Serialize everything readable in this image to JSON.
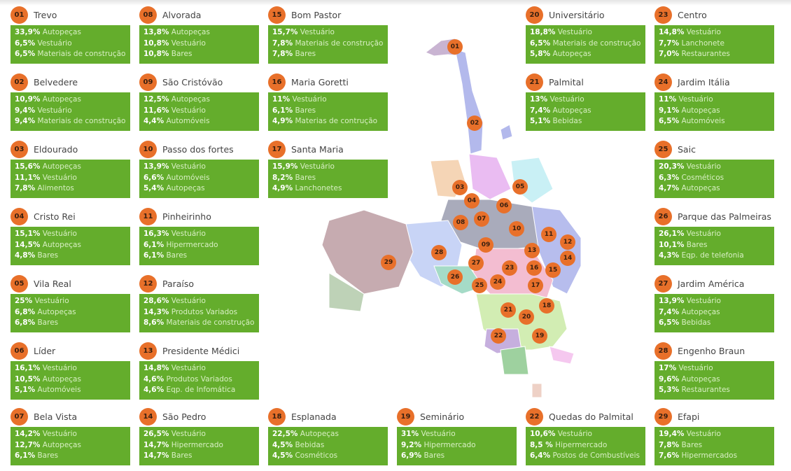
{
  "districts": [
    {
      "num": "01",
      "name": "Trevo",
      "items": [
        [
          "33,9%",
          "Autopeças"
        ],
        [
          "6,5%",
          "Vestuário"
        ],
        [
          "6,5%",
          "Materiais de construção"
        ]
      ]
    },
    {
      "num": "02",
      "name": "Belvedere",
      "items": [
        [
          "10,9%",
          "Autopeças"
        ],
        [
          "9,4%",
          "Vestuário"
        ],
        [
          "9,4%",
          "Materiais de construção"
        ]
      ]
    },
    {
      "num": "03",
      "name": "Eldourado",
      "items": [
        [
          "15,6%",
          "Autopeças"
        ],
        [
          "11,1%",
          "Vestuário"
        ],
        [
          "7,8%",
          "Alimentos"
        ]
      ]
    },
    {
      "num": "04",
      "name": "Cristo Rei",
      "items": [
        [
          "15,1%",
          "Vestuário"
        ],
        [
          "14,5%",
          "Autopeças"
        ],
        [
          "4,8%",
          "Bares"
        ]
      ]
    },
    {
      "num": "05",
      "name": "Vila Real",
      "items": [
        [
          "25%",
          "Vestuário"
        ],
        [
          "6,8%",
          "Autopeças"
        ],
        [
          "6,8%",
          "Bares"
        ]
      ]
    },
    {
      "num": "06",
      "name": "Líder",
      "items": [
        [
          "16,1%",
          "Vestuário"
        ],
        [
          "10,5%",
          "Autopeças"
        ],
        [
          "5,1%",
          "Automóveis"
        ]
      ]
    },
    {
      "num": "07",
      "name": "Bela Vista",
      "items": [
        [
          "14,2%",
          "Vestuário"
        ],
        [
          "12,7%",
          "Autopeças"
        ],
        [
          "6,1%",
          "Bares"
        ]
      ]
    },
    {
      "num": "08",
      "name": "Alvorada",
      "items": [
        [
          "13,8%",
          "Autopeças"
        ],
        [
          "10,8%",
          "Vestuário"
        ],
        [
          "10,8%",
          "Bares"
        ]
      ]
    },
    {
      "num": "09",
      "name": "São Cristóvão",
      "items": [
        [
          "12,5%",
          "Autopeças"
        ],
        [
          "11,6%",
          "Vestuário"
        ],
        [
          "4,4%",
          "Automóveis"
        ]
      ]
    },
    {
      "num": "10",
      "name": "Passo dos fortes",
      "items": [
        [
          "13,9%",
          "Vestuário"
        ],
        [
          "6,6%",
          "Automóveis"
        ],
        [
          "5,4%",
          "Autopeças"
        ]
      ]
    },
    {
      "num": "11",
      "name": "Pinheirinho",
      "items": [
        [
          "16,3%",
          "Vestuário"
        ],
        [
          "6,1%",
          "Hipermercado"
        ],
        [
          "6,1%",
          "Bares"
        ]
      ]
    },
    {
      "num": "12",
      "name": "Paraíso",
      "items": [
        [
          "28,6%",
          "Vestuário"
        ],
        [
          "14,3%",
          "Produtos Variados"
        ],
        [
          "8,6%",
          "Materiais de construção"
        ]
      ]
    },
    {
      "num": "13",
      "name": "Presidente Médici",
      "items": [
        [
          "14,8%",
          "Vestuário"
        ],
        [
          "4,6%",
          "Produtos Variados"
        ],
        [
          "4,6%",
          "Eqp. de Infomática"
        ]
      ]
    },
    {
      "num": "14",
      "name": "São Pedro",
      "items": [
        [
          "26,5%",
          "Vestuário"
        ],
        [
          "14,7%",
          "Hipermercado"
        ],
        [
          "14,7%",
          "Bares"
        ]
      ]
    },
    {
      "num": "15",
      "name": "Bom Pastor",
      "items": [
        [
          "15,7%",
          "Vestuário"
        ],
        [
          "7,8%",
          "Materiais de construção"
        ],
        [
          "7,8%",
          "Bares"
        ]
      ]
    },
    {
      "num": "16",
      "name": "Maria Goretti",
      "items": [
        [
          "11%",
          "Vestuário"
        ],
        [
          "6,1%",
          "Bares"
        ],
        [
          "4,9%",
          "Materias de contrução"
        ]
      ]
    },
    {
      "num": "17",
      "name": "Santa Maria",
      "items": [
        [
          "15,9%",
          "Vestuário"
        ],
        [
          "8,2%",
          "Bares"
        ],
        [
          "4,9%",
          "Lanchonetes"
        ]
      ]
    },
    {
      "num": "18",
      "name": "Esplanada",
      "items": [
        [
          "22,5%",
          "Autopeças"
        ],
        [
          "4,5%",
          "Bebidas"
        ],
        [
          "4,5%",
          "Cosméticos"
        ]
      ]
    },
    {
      "num": "19",
      "name": "Seminário",
      "items": [
        [
          "31%",
          "Vestuário"
        ],
        [
          "9,2%",
          "Hipermercado"
        ],
        [
          "6,9%",
          "Bares"
        ]
      ]
    },
    {
      "num": "20",
      "name": "Universitário",
      "items": [
        [
          "18,8%",
          "Vestuário"
        ],
        [
          "6,5%",
          "Materiais de construção"
        ],
        [
          "5,8%",
          "Autopeças"
        ]
      ]
    },
    {
      "num": "21",
      "name": "Palmital",
      "items": [
        [
          "13%",
          "Vestuário"
        ],
        [
          "7,4%",
          "Autopeças"
        ],
        [
          "5,1%",
          "Bebidas"
        ]
      ]
    },
    {
      "num": "22",
      "name": "Quedas do Palmital",
      "items": [
        [
          "10,6%",
          "Vestuário"
        ],
        [
          "8,5 %",
          "Hipermercado"
        ],
        [
          "6,4%",
          "Postos de Combustíveis"
        ]
      ]
    },
    {
      "num": "23",
      "name": "Centro",
      "items": [
        [
          "14,8%",
          "Vestuário"
        ],
        [
          "7,7%",
          "Lanchonete"
        ],
        [
          "7,0%",
          "Restaurantes"
        ]
      ]
    },
    {
      "num": "24",
      "name": "Jardim Itália",
      "items": [
        [
          "11%",
          "Vestuário"
        ],
        [
          "9,1%",
          "Autopeças"
        ],
        [
          "6,5%",
          "Automóveis"
        ]
      ]
    },
    {
      "num": "25",
      "name": "Saic",
      "items": [
        [
          "20,3%",
          "Vestuário"
        ],
        [
          "6,3%",
          "Cosméticos"
        ],
        [
          "4,7%",
          "Autopeças"
        ]
      ]
    },
    {
      "num": "26",
      "name": "Parque das Palmeiras",
      "items": [
        [
          "26,1%",
          "Vestuário"
        ],
        [
          "10,1%",
          "Bares"
        ],
        [
          "4,3%",
          "Eqp. de telefonia"
        ]
      ]
    },
    {
      "num": "27",
      "name": "Jardim América",
      "items": [
        [
          "13,9%",
          "Vestuário"
        ],
        [
          "7,4%",
          "Autopeças"
        ],
        [
          "6,5%",
          "Bebidas"
        ]
      ]
    },
    {
      "num": "28",
      "name": "Engenho Braun",
      "items": [
        [
          "17%",
          "Vestuário"
        ],
        [
          "9,6%",
          "Autopeças"
        ],
        [
          "5,3%",
          "Restaurantes"
        ]
      ]
    },
    {
      "num": "29",
      "name": "Efapi",
      "items": [
        [
          "19,4%",
          "Vestuário"
        ],
        [
          "7,8%",
          "Bares"
        ],
        [
          "7,6%",
          "Hipermercados"
        ]
      ]
    }
  ],
  "colors": {
    "accent": "#e8702a",
    "box": "#64ad2c"
  }
}
